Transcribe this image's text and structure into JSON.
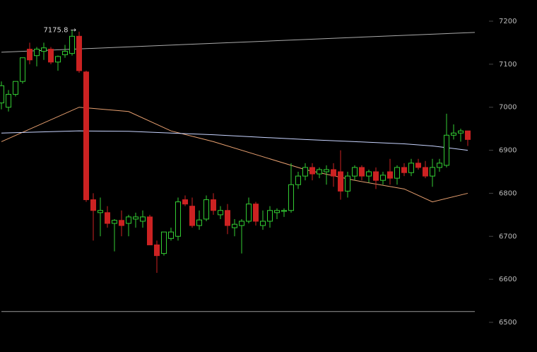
{
  "chart_data": {
    "type": "candlestick",
    "xlim": [
      0,
      67
    ],
    "ylim": [
      6500,
      7200
    ],
    "yticks": [
      6500,
      6600,
      6700,
      6800,
      6900,
      7000,
      7100,
      7200
    ],
    "up_color": "#33cc33",
    "down_color": "#cc2222",
    "open": [
      7010,
      7000,
      7030,
      7060,
      7135,
      7120,
      7130,
      7135,
      7105,
      7122,
      7125,
      7165,
      7082,
      6785,
      6755,
      6755,
      6730,
      6737,
      6730,
      6740,
      6735,
      6745,
      6680,
      6660,
      6695,
      6700,
      6785,
      6770,
      6725,
      6740,
      6785,
      6750,
      6760,
      6720,
      6725,
      6735,
      6775,
      6725,
      6735,
      6755,
      6758,
      6760,
      6820,
      6840,
      6860,
      6845,
      6850,
      6855,
      6850,
      6805,
      6840,
      6860,
      6840,
      6850,
      6830,
      6850,
      6835,
      6860,
      6848,
      6870,
      6860,
      6840,
      6860,
      6865,
      6935,
      6940,
      6945
    ],
    "high": [
      7060,
      7040,
      7060,
      7115,
      7150,
      7140,
      7150,
      7140,
      7120,
      7145,
      7180,
      7175.8,
      7085,
      6800,
      6790,
      6770,
      6740,
      6760,
      6750,
      6755,
      6760,
      6750,
      6690,
      6710,
      6720,
      6790,
      6795,
      6790,
      6760,
      6795,
      6800,
      6770,
      6775,
      6740,
      6740,
      6790,
      6780,
      6760,
      6770,
      6765,
      6765,
      6870,
      6850,
      6870,
      6870,
      6860,
      6865,
      6870,
      6900,
      6850,
      6865,
      6865,
      6855,
      6860,
      6850,
      6880,
      6865,
      6870,
      6880,
      6880,
      6875,
      6880,
      6880,
      6985,
      6960,
      6950,
      6945
    ],
    "low": [
      6995,
      6990,
      7025,
      7055,
      7100,
      7095,
      7110,
      7100,
      7085,
      7115,
      7120,
      7080,
      6780,
      6690,
      6700,
      6720,
      6665,
      6700,
      6700,
      6720,
      6720,
      6680,
      6615,
      6655,
      6690,
      6690,
      6770,
      6720,
      6715,
      6735,
      6750,
      6740,
      6705,
      6700,
      6660,
      6730,
      6725,
      6715,
      6720,
      6740,
      6745,
      6755,
      6810,
      6830,
      6830,
      6835,
      6820,
      6815,
      6785,
      6790,
      6830,
      6830,
      6825,
      6810,
      6820,
      6820,
      6820,
      6840,
      6840,
      6855,
      6835,
      6815,
      6850,
      6860,
      6925,
      6920,
      6910
    ],
    "close": [
      7050,
      7030,
      7060,
      7115,
      7110,
      7135,
      7138,
      7105,
      7118,
      7130,
      7165,
      7085,
      6785,
      6760,
      6760,
      6730,
      6737,
      6725,
      6745,
      6745,
      6745,
      6680,
      6655,
      6710,
      6710,
      6780,
      6775,
      6725,
      6738,
      6785,
      6760,
      6760,
      6725,
      6728,
      6735,
      6775,
      6735,
      6735,
      6760,
      6760,
      6760,
      6820,
      6840,
      6860,
      6845,
      6855,
      6855,
      6840,
      6805,
      6840,
      6860,
      6840,
      6850,
      6830,
      6842,
      6835,
      6860,
      6848,
      6870,
      6860,
      6840,
      6860,
      6870,
      6935,
      6940,
      6945,
      6925
    ],
    "lines": [
      {
        "color": "#e8a070",
        "x": [
          0,
          11,
          18,
          24,
          30,
          37,
          43,
          50,
          57,
          61,
          66
        ],
        "values": [
          6920,
          7000,
          6990,
          6945,
          6920,
          6885,
          6855,
          6830,
          6810,
          6780,
          6800
        ]
      },
      {
        "color": "#c8d4ff",
        "x": [
          0,
          11,
          18,
          24,
          30,
          37,
          43,
          50,
          57,
          61,
          66
        ],
        "values": [
          6940,
          6945,
          6944,
          6940,
          6936,
          6930,
          6925,
          6920,
          6915,
          6910,
          6900
        ]
      },
      {
        "color": "#aaaaaa",
        "x": [
          0,
          67
        ],
        "values": [
          7128,
          7174
        ]
      },
      {
        "color": "#999999",
        "x": [
          0,
          67
        ],
        "values": [
          6525,
          6525
        ]
      }
    ],
    "annotation": {
      "value": 7175.8,
      "label": "7175.8 →"
    }
  }
}
